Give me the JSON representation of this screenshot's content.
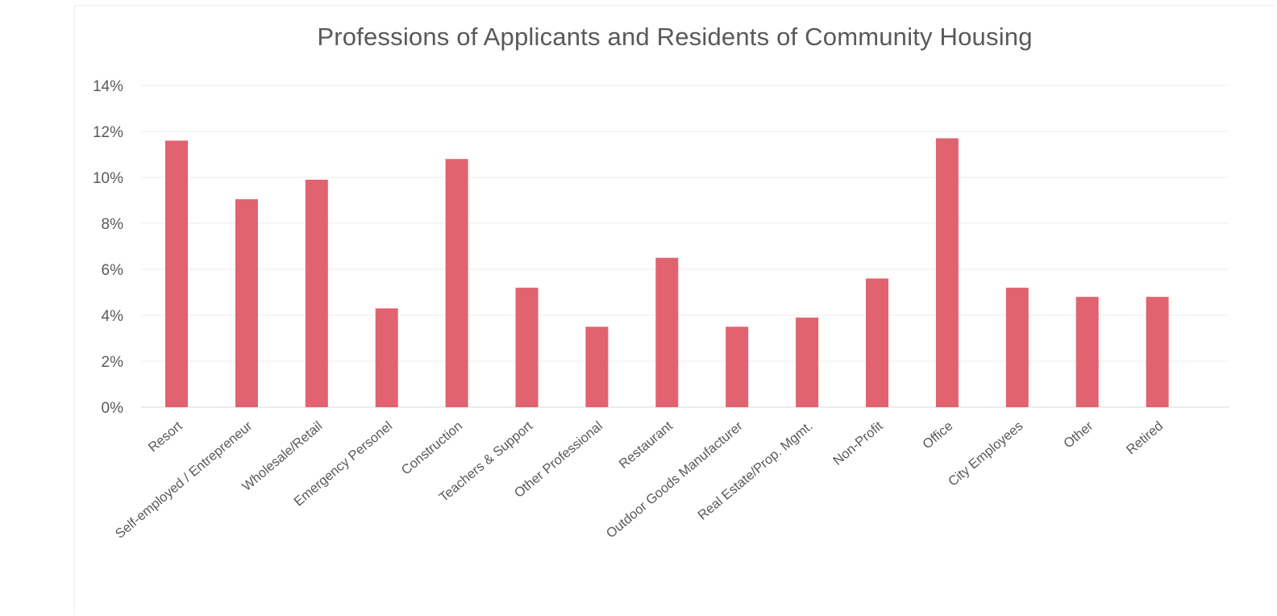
{
  "chart_data": {
    "type": "bar",
    "title": "Professions of Applicants and Residents of  Community Housing",
    "xlabel": "",
    "ylabel": "",
    "ylim": [
      0,
      14
    ],
    "y_ticks": [
      "0%",
      "2%",
      "4%",
      "6%",
      "8%",
      "10%",
      "12%",
      "14%"
    ],
    "y_tick_values": [
      0,
      2,
      4,
      6,
      8,
      10,
      12,
      14
    ],
    "grid": true,
    "legend": "none",
    "bar_color": "#E0636F",
    "categories": [
      "Resort",
      "Self-employed / Entrepreneur",
      "Wholesale/Retail",
      "Emergency Personel",
      "Construction",
      "Teachers & Support",
      "Other Professional",
      "Restaurant",
      "Outdoor Goods Manufacturer",
      "Real Estate/Prop. Mgmt.",
      "Non-Profit",
      "Office",
      "City Employees",
      "Other",
      "Retired"
    ],
    "values": [
      11.6,
      9.05,
      9.9,
      4.3,
      10.8,
      5.2,
      3.5,
      6.5,
      3.5,
      3.9,
      5.6,
      11.7,
      5.2,
      4.8,
      4.8
    ]
  }
}
